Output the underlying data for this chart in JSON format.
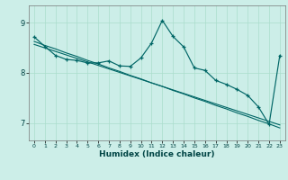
{
  "bg_color": "#cceee8",
  "line_color": "#006666",
  "grid_color": "#aaddcc",
  "xlabel": "Humidex (Indice chaleur)",
  "x_main": [
    0,
    1,
    2,
    3,
    4,
    5,
    6,
    7,
    8,
    9,
    10,
    11,
    12,
    13,
    14,
    15,
    16,
    17,
    18,
    19,
    20,
    21,
    22,
    23
  ],
  "y_main": [
    8.72,
    8.53,
    8.35,
    8.27,
    8.25,
    8.2,
    8.2,
    8.24,
    8.14,
    8.13,
    8.3,
    8.6,
    9.05,
    8.73,
    8.52,
    8.1,
    8.05,
    7.85,
    7.77,
    7.67,
    7.55,
    7.32,
    6.97,
    8.35
  ],
  "y_reg1": [
    8.63,
    8.55,
    8.48,
    8.4,
    8.33,
    8.25,
    8.18,
    8.1,
    8.03,
    7.95,
    7.88,
    7.8,
    7.73,
    7.65,
    7.58,
    7.5,
    7.43,
    7.35,
    7.28,
    7.2,
    7.13,
    7.05,
    6.98,
    6.9
  ],
  "y_reg2": [
    8.57,
    8.5,
    8.43,
    8.36,
    8.29,
    8.22,
    8.15,
    8.08,
    8.01,
    7.94,
    7.87,
    7.8,
    7.73,
    7.66,
    7.59,
    7.52,
    7.45,
    7.38,
    7.31,
    7.24,
    7.17,
    7.1,
    7.03,
    6.96
  ],
  "xlim": [
    -0.5,
    23.5
  ],
  "ylim": [
    6.65,
    9.35
  ],
  "yticks": [
    7,
    8,
    9
  ],
  "xticks": [
    0,
    1,
    2,
    3,
    4,
    5,
    6,
    7,
    8,
    9,
    10,
    11,
    12,
    13,
    14,
    15,
    16,
    17,
    18,
    19,
    20,
    21,
    22,
    23
  ],
  "figsize": [
    3.2,
    2.0
  ],
  "dpi": 100
}
